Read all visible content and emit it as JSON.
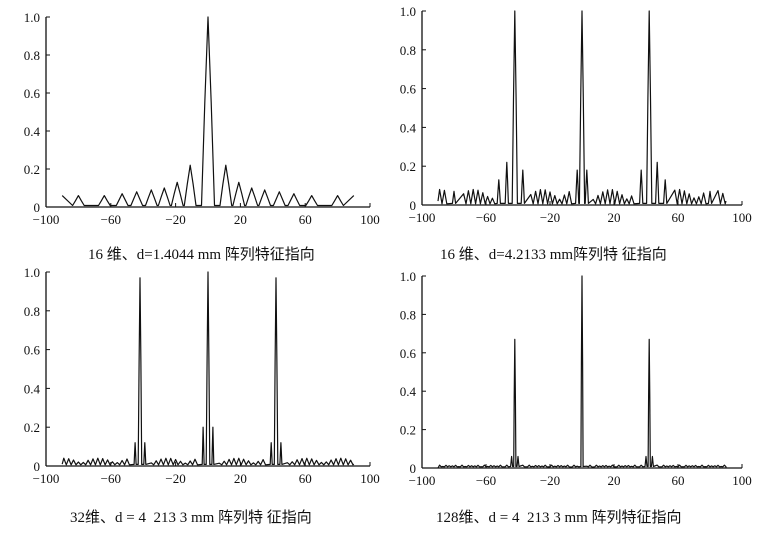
{
  "chart_data": [
    {
      "type": "line",
      "caption": "16 维、d=1.4044 mm 阵列特征指向",
      "xlim": [
        -100,
        100
      ],
      "ylim": [
        0,
        1
      ],
      "x_ticks": [
        "−100",
        "−60",
        "−20",
        "20",
        "60",
        "100"
      ],
      "y_ticks": [
        "0",
        "0.2",
        "0.4",
        "0.6",
        "0.8",
        "1.0"
      ],
      "x_range": [
        -90,
        90
      ],
      "main_lobes": [
        {
          "x": 0,
          "y": 1.0
        }
      ],
      "sidelobe_peaks": [
        {
          "x": -11,
          "y": 0.22
        },
        {
          "x": -19,
          "y": 0.13
        },
        {
          "x": -27,
          "y": 0.1
        },
        {
          "x": -35,
          "y": 0.09
        },
        {
          "x": -44,
          "y": 0.08
        },
        {
          "x": -53,
          "y": 0.07
        },
        {
          "x": -64,
          "y": 0.06
        },
        {
          "x": -80,
          "y": 0.06
        },
        {
          "x": 11,
          "y": 0.22
        },
        {
          "x": 19,
          "y": 0.13
        },
        {
          "x": 27,
          "y": 0.1
        },
        {
          "x": 35,
          "y": 0.09
        },
        {
          "x": 44,
          "y": 0.08
        },
        {
          "x": 53,
          "y": 0.07
        },
        {
          "x": 64,
          "y": 0.06
        },
        {
          "x": 80,
          "y": 0.06
        }
      ],
      "endpoint_level": 0.06
    },
    {
      "type": "line",
      "caption": "16 维、d=4.2133 mm阵列特 征指向",
      "xlim": [
        -100,
        100
      ],
      "ylim": [
        0,
        1
      ],
      "x_ticks": [
        "−100",
        "−60",
        "−20",
        "20",
        "60",
        "100"
      ],
      "y_ticks": [
        "0",
        "0.2",
        "0.4",
        "0.6",
        "0.8",
        "1.0"
      ],
      "x_range": [
        -90,
        90
      ],
      "main_lobes": [
        {
          "x": -42,
          "y": 1.0
        },
        {
          "x": 0,
          "y": 1.0
        },
        {
          "x": 42,
          "y": 1.0
        }
      ],
      "sidelobe_peaks": [
        {
          "x": -47,
          "y": 0.22
        },
        {
          "x": -37,
          "y": 0.18
        },
        {
          "x": -52,
          "y": 0.13
        },
        {
          "x": -80,
          "y": 0.07
        },
        {
          "x": -3,
          "y": 0.18
        },
        {
          "x": 3,
          "y": 0.18
        },
        {
          "x": 37,
          "y": 0.18
        },
        {
          "x": 47,
          "y": 0.22
        },
        {
          "x": 52,
          "y": 0.13
        },
        {
          "x": 80,
          "y": 0.07
        }
      ],
      "endpoint_level": 0.02
    },
    {
      "type": "line",
      "caption": "32维、d = 4  213 3 mm 阵列特 征指向",
      "xlim": [
        -100,
        100
      ],
      "ylim": [
        0,
        1
      ],
      "x_ticks": [
        "−100",
        "−60",
        "−20",
        "20",
        "60",
        "100"
      ],
      "y_ticks": [
        "0",
        "0.2",
        "0.4",
        "0.6",
        "0.8",
        "1.0"
      ],
      "x_range": [
        -90,
        90
      ],
      "main_lobes": [
        {
          "x": -42,
          "y": 0.97
        },
        {
          "x": 0,
          "y": 1.0
        },
        {
          "x": 42,
          "y": 0.97
        }
      ],
      "sidelobe_peaks": [
        {
          "x": -45,
          "y": 0.12
        },
        {
          "x": -39,
          "y": 0.12
        },
        {
          "x": -3,
          "y": 0.2
        },
        {
          "x": 3,
          "y": 0.2
        },
        {
          "x": 39,
          "y": 0.12
        },
        {
          "x": 45,
          "y": 0.12
        }
      ],
      "endpoint_level": 0.01
    },
    {
      "type": "line",
      "caption": "128维、d = 4  213 3 mm 阵列特征指向",
      "xlim": [
        -100,
        100
      ],
      "ylim": [
        0,
        1
      ],
      "x_ticks": [
        "−100",
        "−60",
        "−20",
        "20",
        "60",
        "100"
      ],
      "y_ticks": [
        "0",
        "0.2",
        "0.4",
        "0.6",
        "0.8",
        "1.0"
      ],
      "x_range": [
        -90,
        90
      ],
      "main_lobes": [
        {
          "x": -42,
          "y": 0.67
        },
        {
          "x": 0,
          "y": 1.0
        },
        {
          "x": 42,
          "y": 0.67
        }
      ],
      "sidelobe_peaks": [
        {
          "x": -44,
          "y": 0.06
        },
        {
          "x": -40,
          "y": 0.06
        },
        {
          "x": 40,
          "y": 0.06
        },
        {
          "x": 44,
          "y": 0.06
        }
      ],
      "endpoint_level": 0.0
    }
  ]
}
